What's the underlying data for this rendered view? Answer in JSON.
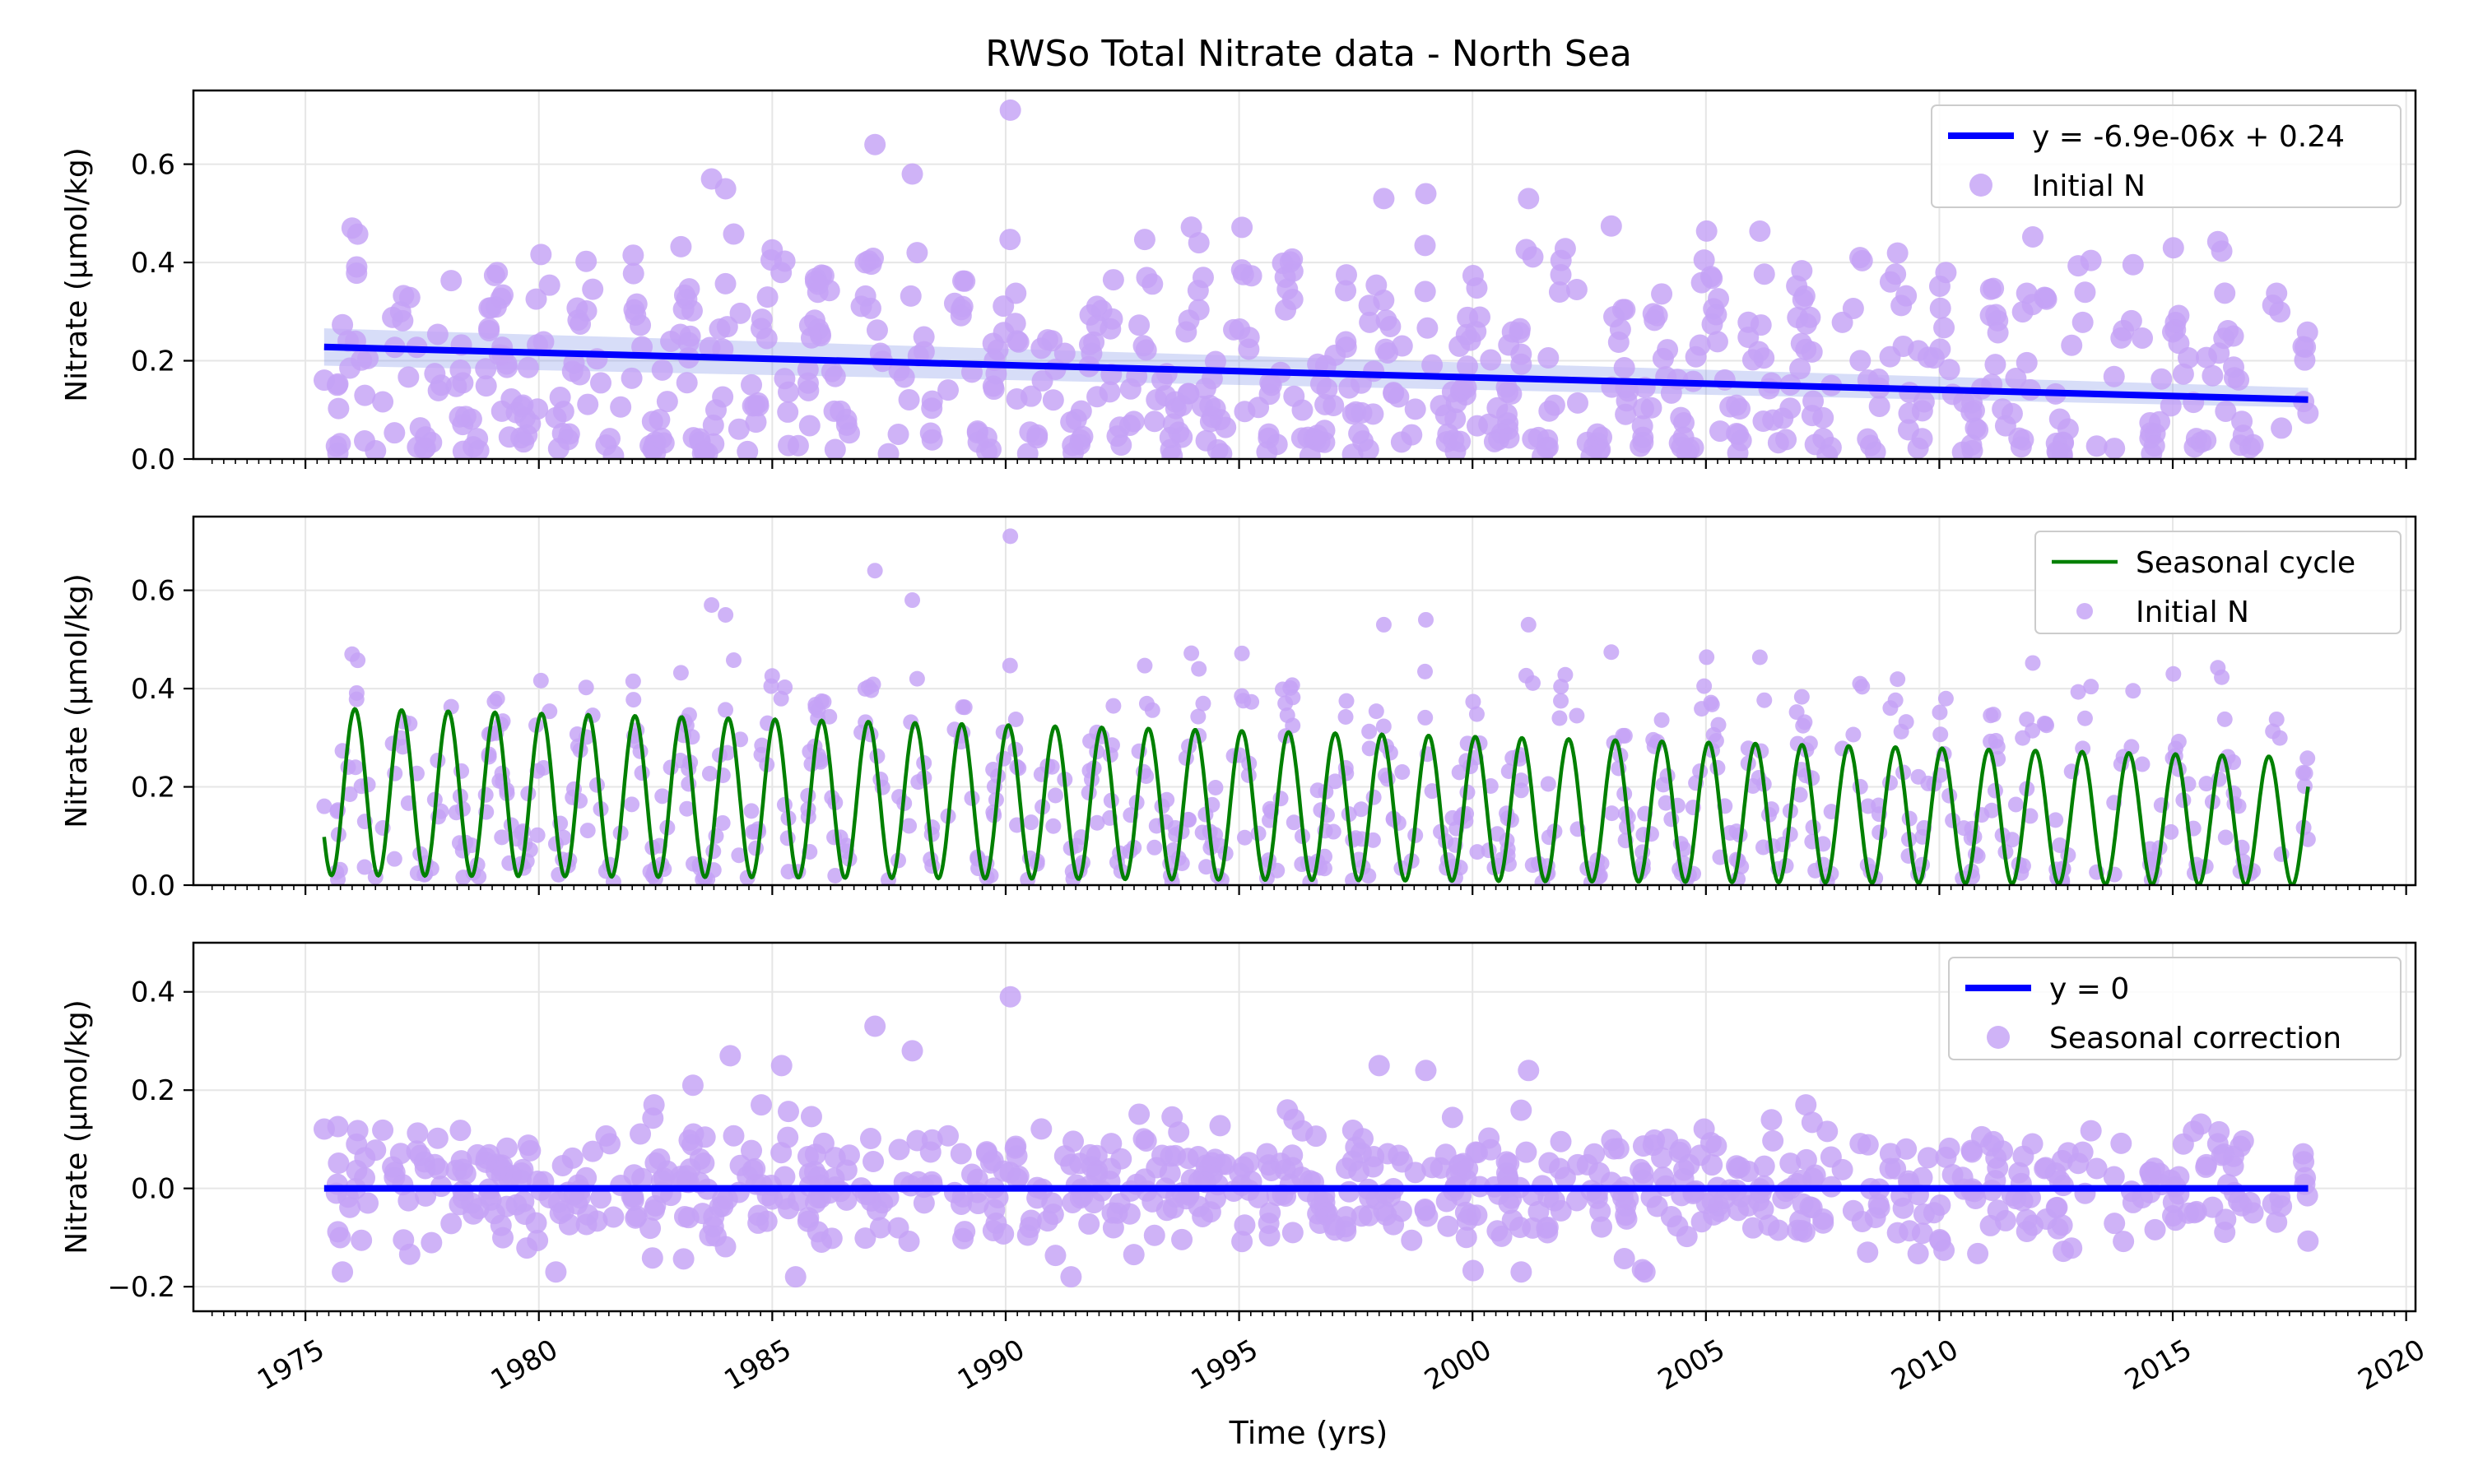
{
  "figure": {
    "title": "RWSo Total Nitrate data - North Sea",
    "xlabel": "Time (yrs)"
  },
  "colors": {
    "scatter": "#c5a2f5",
    "trend": "#0000ff",
    "seasonal": "#008000",
    "band": "#6f86e6",
    "grid": "#e6e6e6"
  },
  "chart_data": [
    {
      "type": "scatter",
      "ylabel": "Nitrate (μmol/kg)",
      "xlim": [
        1972.6,
        2020.2
      ],
      "ylim": [
        0.0,
        0.75
      ],
      "xticks": [
        1975,
        1980,
        1985,
        1990,
        1995,
        2000,
        2005,
        2010,
        2015,
        2020
      ],
      "yticks": [
        0.0,
        0.2,
        0.4,
        0.6
      ],
      "ytick_labels": [
        "0.0",
        "0.2",
        "0.4",
        "0.6"
      ],
      "legend": {
        "placement": "top-right",
        "entries": [
          "y = -6.9e-06x + 0.24",
          "Initial N"
        ]
      },
      "grid": true,
      "series": [
        {
          "name": "y = -6.9e-06x + 0.24",
          "kind": "line",
          "x": [
            1975.4,
            2017.9
          ],
          "y": [
            0.228,
            0.121
          ]
        },
        {
          "name": "Initial N",
          "kind": "scatter",
          "x_range": [
            1975.4,
            2017.9
          ],
          "samples_per_year": 17,
          "seasonal_mean": 0.17,
          "seasonal_amplitude": 0.16,
          "seasonal_phase": 1.2,
          "noise": 0.11,
          "outliers": [
            [
              1976.0,
              0.47
            ],
            [
              1983.7,
              0.57
            ],
            [
              1984.0,
              0.55
            ],
            [
              1987.2,
              0.64
            ],
            [
              1988.0,
              0.58
            ],
            [
              1990.1,
              0.71
            ],
            [
              1998.1,
              0.53
            ],
            [
              1999.0,
              0.54
            ],
            [
              2001.2,
              0.53
            ],
            [
              2008.3,
              0.41
            ]
          ]
        }
      ],
      "band": {
        "x": [
          1975.4,
          2017.9
        ],
        "y_lower": [
          0.19,
          0.105
        ],
        "y_upper": [
          0.266,
          0.145
        ]
      }
    },
    {
      "type": "line",
      "ylabel": "Nitrate (μmol/kg)",
      "xlim": [
        1972.6,
        2020.2
      ],
      "ylim": [
        0.0,
        0.75
      ],
      "xticks": [
        1975,
        1980,
        1985,
        1990,
        1995,
        2000,
        2005,
        2010,
        2015,
        2020
      ],
      "yticks": [
        0.0,
        0.2,
        0.4,
        0.6
      ],
      "ytick_labels": [
        "0.0",
        "0.2",
        "0.4",
        "0.6"
      ],
      "legend": {
        "placement": "top-right",
        "entries": [
          "Seasonal cycle",
          "Initial N"
        ]
      },
      "grid": true,
      "series": [
        {
          "name": "Seasonal cycle",
          "kind": "seasonal",
          "x_range": [
            1975.4,
            2017.9
          ],
          "mean_start": 0.19,
          "mean_end": 0.13,
          "amp_start": 0.17,
          "amp_end": 0.13,
          "phase": 1.2
        },
        {
          "name": "Initial N",
          "kind": "scatter",
          "marker": "small"
        }
      ]
    },
    {
      "type": "scatter",
      "ylabel": "Nitrate (μmol/kg)",
      "xlim": [
        1972.6,
        2020.2
      ],
      "ylim": [
        -0.25,
        0.5
      ],
      "xticks": [
        1975,
        1980,
        1985,
        1990,
        1995,
        2000,
        2005,
        2010,
        2015,
        2020
      ],
      "yticks": [
        -0.2,
        0.0,
        0.2,
        0.4
      ],
      "ytick_labels": [
        "−0.2",
        "0.0",
        "0.2",
        "0.4"
      ],
      "legend": {
        "placement": "top-right",
        "entries": [
          "y = 0",
          "Seasonal correction"
        ]
      },
      "grid": true,
      "series": [
        {
          "name": "y = 0",
          "kind": "line",
          "x": [
            1975.4,
            2017.9
          ],
          "y": [
            0.0,
            0.0
          ]
        },
        {
          "name": "Seasonal correction",
          "kind": "scatter",
          "noise": 0.065,
          "outliers": [
            [
              1983.3,
              0.21
            ],
            [
              1984.1,
              0.27
            ],
            [
              1985.2,
              0.25
            ],
            [
              1987.2,
              0.33
            ],
            [
              1988.0,
              0.28
            ],
            [
              1990.1,
              0.39
            ],
            [
              1998.0,
              0.25
            ],
            [
              1999.0,
              0.24
            ],
            [
              2001.2,
              0.24
            ],
            [
              1985.5,
              -0.18
            ],
            [
              1991.4,
              -0.18
            ]
          ]
        }
      ]
    }
  ]
}
